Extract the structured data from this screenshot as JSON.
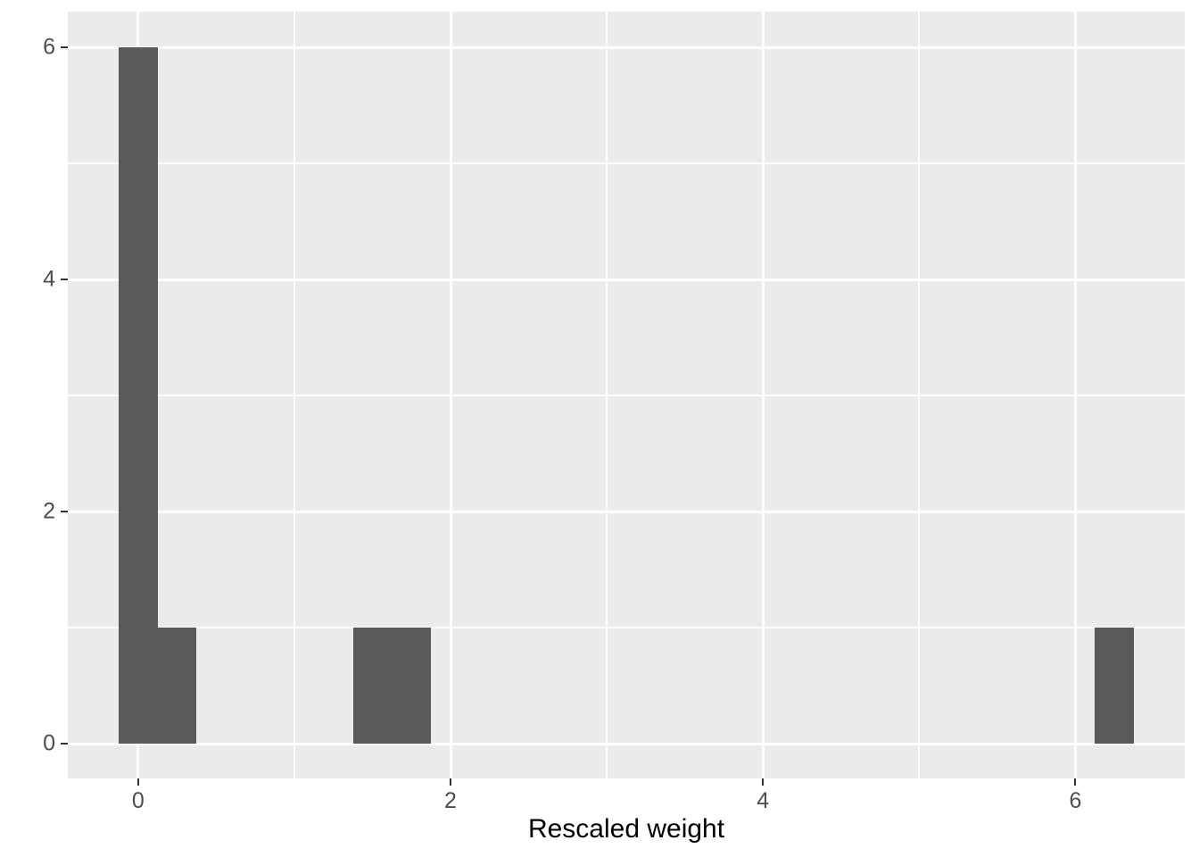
{
  "chart_data": {
    "type": "bar",
    "subtype": "histogram",
    "title": "",
    "xlabel": "Rescaled weight",
    "ylabel": "",
    "binwidth": 0.25,
    "bins": [
      {
        "center": 0,
        "count": 6
      },
      {
        "center": 0.25,
        "count": 1
      },
      {
        "center": 1.5,
        "count": 1
      },
      {
        "center": 1.75,
        "count": 1
      },
      {
        "center": 6.25,
        "count": 1
      }
    ],
    "x_ticks": [
      0,
      2,
      4,
      6
    ],
    "y_ticks": [
      0,
      2,
      4,
      6
    ],
    "x_minor_ticks": [
      1,
      3,
      5
    ],
    "y_minor_ticks": [
      1,
      3,
      5
    ],
    "xlim": [
      -0.45,
      6.7
    ],
    "ylim": [
      -0.3,
      6.31
    ],
    "grid": "major-and-minor",
    "legend": "none",
    "colors": {
      "bar_fill": "#595959",
      "panel_bg": "#EBEBEB",
      "grid_major": "#FFFFFF",
      "grid_minor": "#FFFFFF",
      "tick_mark": "#333333",
      "tick_label": "#4D4D4D",
      "axis_title": "#000000",
      "figure_bg": "#FFFFFF"
    }
  }
}
